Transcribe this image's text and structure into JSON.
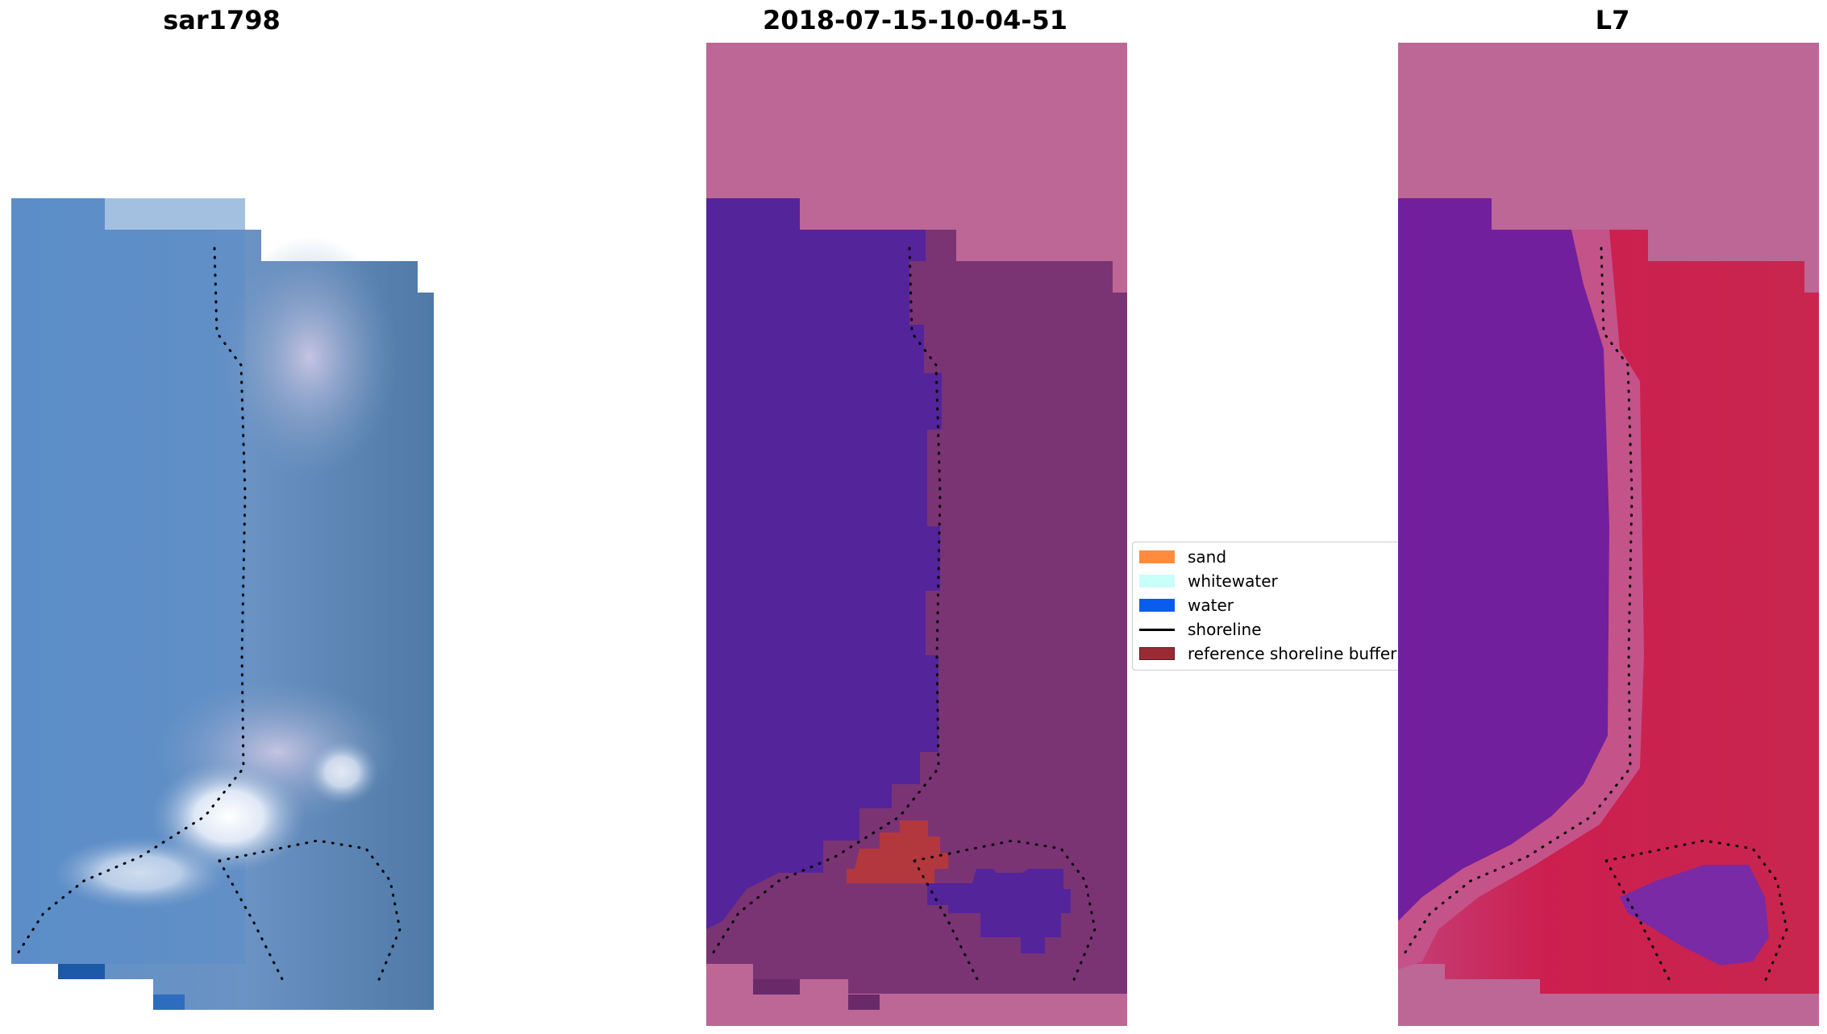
{
  "panels": [
    {
      "title": "sar1798"
    },
    {
      "title": "2018-07-15-10-04-51"
    },
    {
      "title": "L7"
    }
  ],
  "legend": {
    "items": [
      {
        "label": "sand",
        "color": "#ff8c3c",
        "kind": "patch"
      },
      {
        "label": "whitewater",
        "color": "#c8fff8",
        "kind": "patch"
      },
      {
        "label": "water",
        "color": "#0a5cf0",
        "kind": "patch"
      },
      {
        "label": "shoreline",
        "color": "#000000",
        "kind": "line"
      },
      {
        "label": "reference shoreline buffer",
        "color": "#9a2b35",
        "kind": "patch"
      }
    ]
  },
  "colors": {
    "rgb_water": "#5b8bc6",
    "rgb_land": "#5f86b0",
    "rgb_sand": "#b9c4de",
    "rgb_whitewater": "#eef3fb",
    "class_background": "#bc6795",
    "class_water": "#54249a",
    "class_land": "#7a3474",
    "class_buffer": "#b3383e",
    "index_background": "#bc6795",
    "index_water": "#721f9d",
    "index_land": "#c8174e",
    "index_transition": "#c4538a"
  }
}
